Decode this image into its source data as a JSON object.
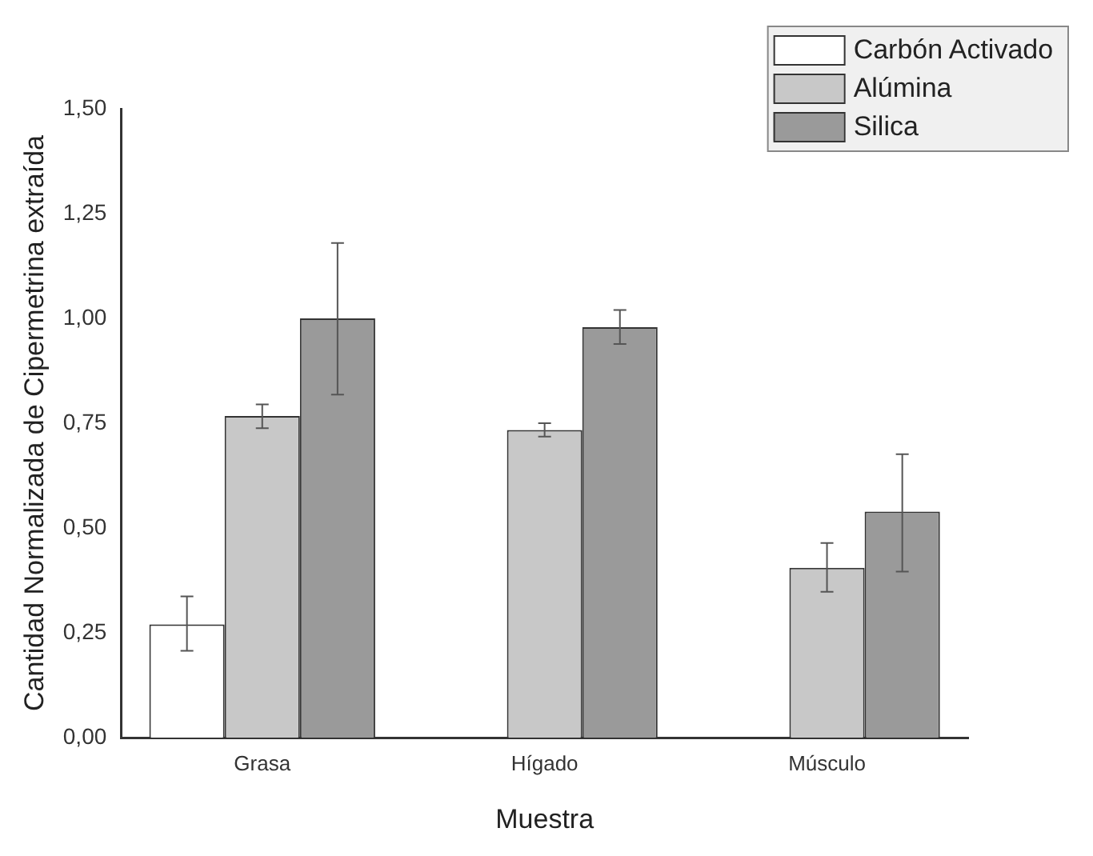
{
  "chart_data": {
    "type": "bar",
    "xlabel": "Muestra",
    "ylabel": "Cantidad Normalizada de Cipermetrina extraída",
    "categories": [
      "Grasa",
      "Hígado",
      "Músculo"
    ],
    "series": [
      {
        "name": "Carbón Activado",
        "color": "#ffffff",
        "values": [
          0.27,
          null,
          null
        ],
        "errors": [
          [
            0.207,
            0.337
          ],
          null,
          null
        ]
      },
      {
        "name": "Alúmina",
        "color": "#c8c8c8",
        "values": [
          0.767,
          0.734,
          0.405
        ],
        "errors": [
          [
            0.738,
            0.795
          ],
          [
            0.718,
            0.75
          ],
          [
            0.348,
            0.464
          ]
        ]
      },
      {
        "name": "Silica",
        "color": "#9a9a9a",
        "values": [
          1.0,
          0.979,
          0.539
        ],
        "errors": [
          [
            0.818,
            1.18
          ],
          [
            0.939,
            1.02
          ],
          [
            0.396,
            0.676
          ]
        ]
      }
    ],
    "ylim": [
      0,
      1.5
    ],
    "yticks": [
      {
        "value": 0,
        "label": "0,00"
      },
      {
        "value": 0.25,
        "label": "0,25"
      },
      {
        "value": 0.5,
        "label": "0,50"
      },
      {
        "value": 0.75,
        "label": "0,75"
      },
      {
        "value": 1,
        "label": "1,00"
      },
      {
        "value": 1.25,
        "label": "1,25"
      },
      {
        "value": 1.5,
        "label": "1,50"
      }
    ],
    "grid": false,
    "legend": "top right"
  }
}
